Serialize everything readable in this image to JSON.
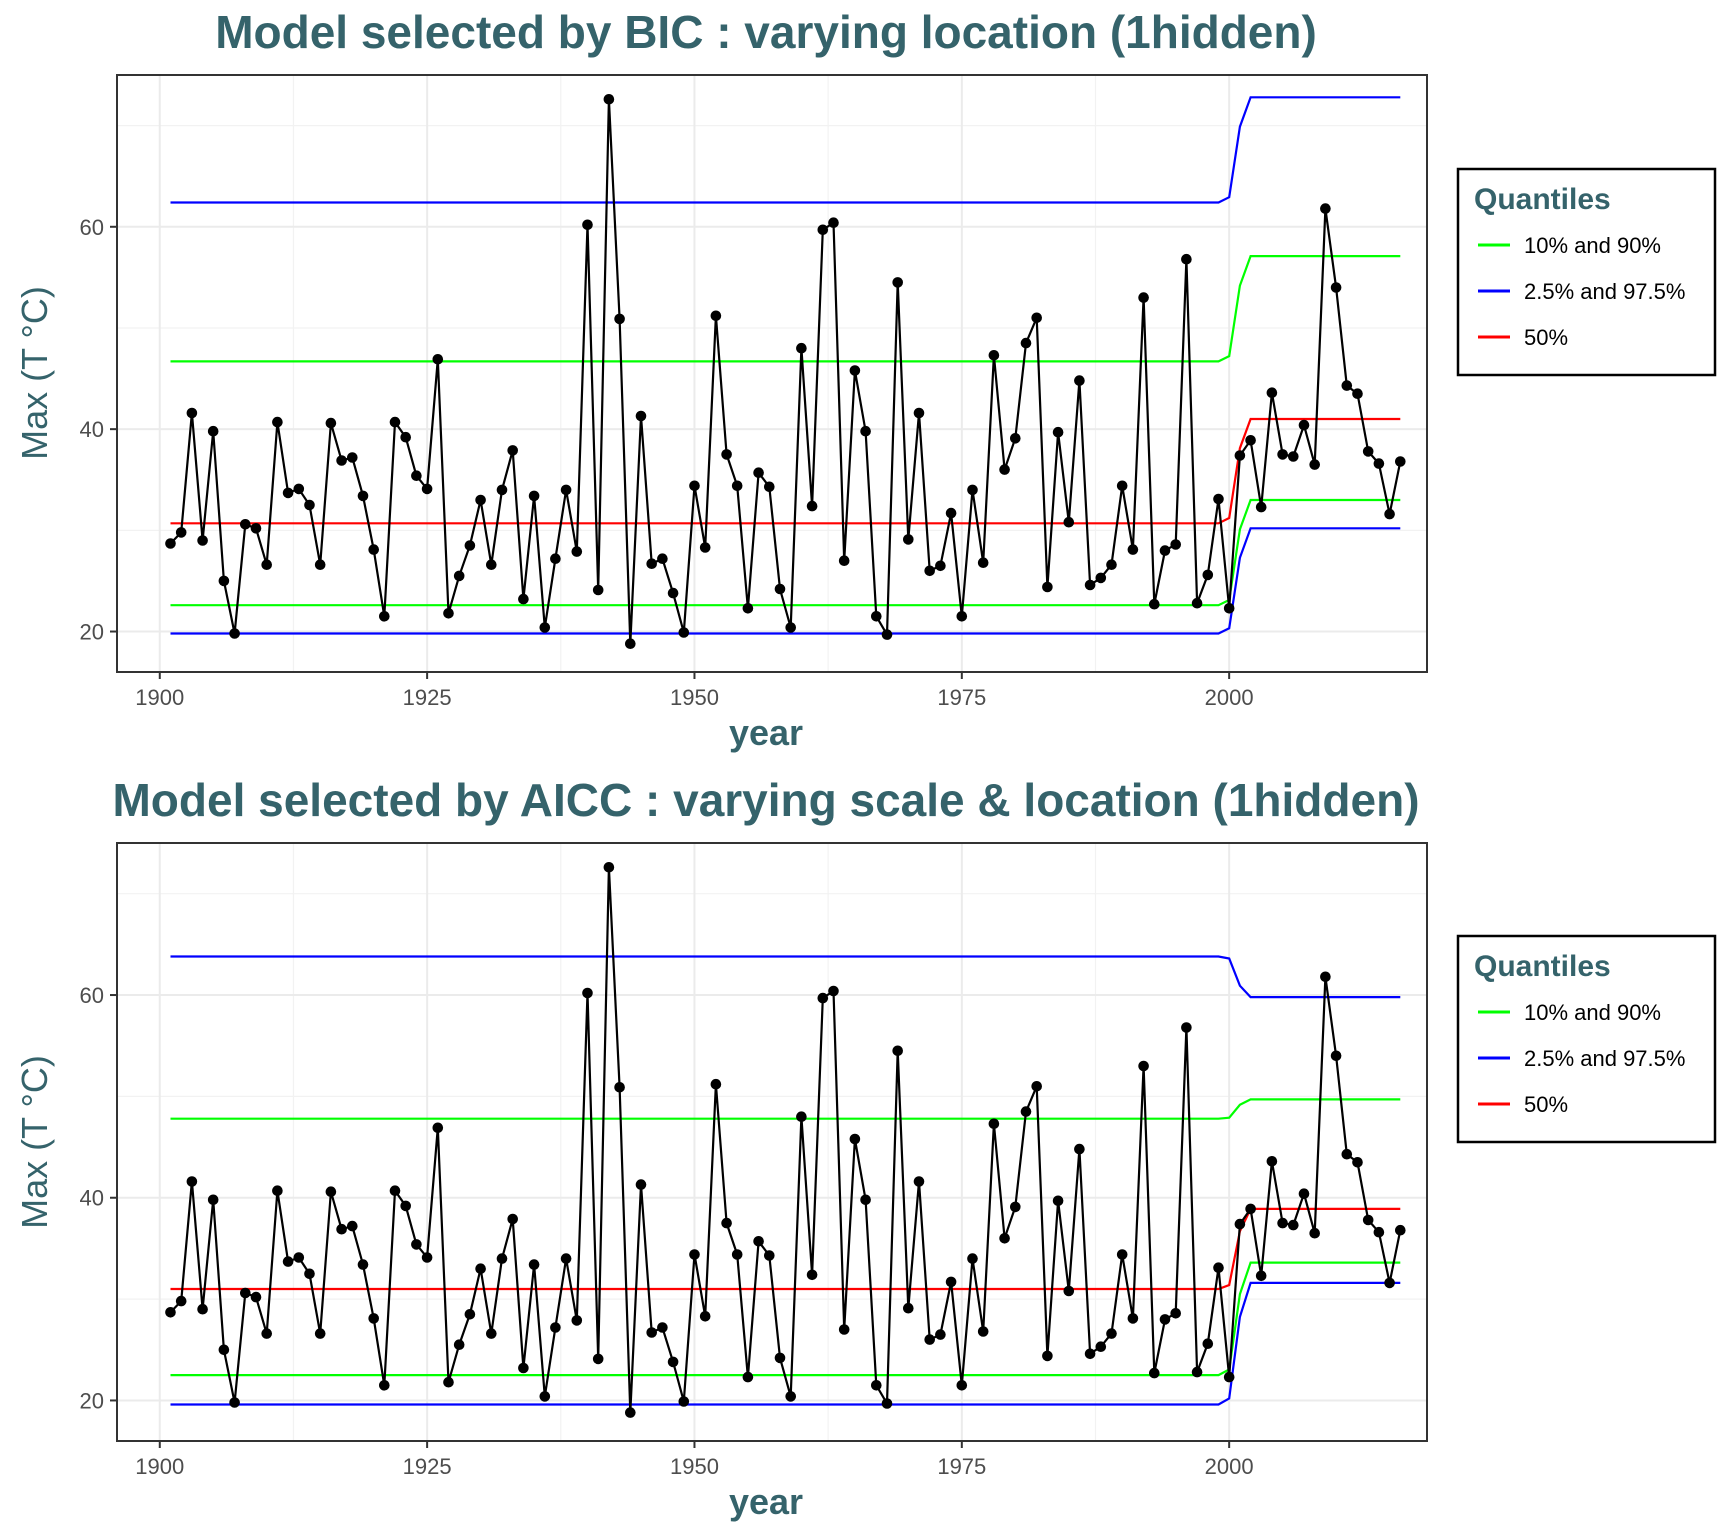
{
  "chart_data": [
    {
      "type": "line",
      "title": "Model selected by BIC : varying location (1hidden)",
      "xlabel": "year",
      "ylabel": "Max (T °C)",
      "xlim": [
        1896,
        2018.5
      ],
      "ylim": [
        16,
        75
      ],
      "xticks": [
        1900,
        1925,
        1950,
        1975,
        2000
      ],
      "yticks": [
        20,
        40,
        60
      ],
      "grid": true,
      "legend": {
        "title": "Quantiles",
        "placement": "right",
        "entries": [
          {
            "label": "10% and 90%",
            "color": "#00ff00"
          },
          {
            "label": "2.5% and 97.5%",
            "color": "#0000ff"
          },
          {
            "label": "50%",
            "color": "#ff0000"
          }
        ]
      },
      "quantiles": {
        "q025": {
          "before": 19.8,
          "after": 30.2,
          "color": "#0000ff"
        },
        "q10": {
          "before": 22.6,
          "after": 33.0,
          "color": "#00ff00"
        },
        "q50": {
          "before": 30.7,
          "after": 41.0,
          "color": "#ff0000"
        },
        "q90": {
          "before": 46.7,
          "after": 57.1,
          "color": "#00ff00"
        },
        "q975": {
          "before": 62.4,
          "after": 72.8,
          "color": "#0000ff"
        }
      },
      "observations": {
        "x": [
          1901,
          1902,
          1903,
          1904,
          1905,
          1906,
          1907,
          1908,
          1909,
          1910,
          1911,
          1912,
          1913,
          1914,
          1915,
          1916,
          1917,
          1918,
          1919,
          1920,
          1921,
          1922,
          1923,
          1924,
          1925,
          1926,
          1927,
          1928,
          1929,
          1930,
          1931,
          1932,
          1933,
          1934,
          1935,
          1936,
          1937,
          1938,
          1939,
          1940,
          1941,
          1942,
          1943,
          1944,
          1945,
          1946,
          1947,
          1948,
          1949,
          1950,
          1951,
          1952,
          1953,
          1954,
          1955,
          1956,
          1957,
          1958,
          1959,
          1960,
          1961,
          1962,
          1963,
          1964,
          1965,
          1966,
          1967,
          1968,
          1969,
          1970,
          1971,
          1972,
          1973,
          1974,
          1975,
          1976,
          1977,
          1978,
          1979,
          1980,
          1981,
          1982,
          1983,
          1984,
          1985,
          1986,
          1987,
          1988,
          1989,
          1990,
          1991,
          1992,
          1993,
          1994,
          1995,
          1996,
          1997,
          1998,
          1999,
          2000,
          2001,
          2002,
          2003,
          2004,
          2005,
          2006,
          2007,
          2008,
          2009,
          2010,
          2011,
          2012,
          2013,
          2014,
          2015,
          2016
        ],
        "y": [
          28.7,
          29.8,
          41.6,
          29.0,
          39.8,
          25.0,
          19.8,
          30.6,
          30.2,
          26.6,
          40.7,
          33.7,
          34.1,
          32.5,
          26.6,
          40.6,
          36.9,
          37.2,
          33.4,
          28.1,
          21.5,
          40.7,
          39.2,
          35.4,
          34.1,
          46.9,
          21.8,
          25.5,
          28.5,
          33.0,
          26.6,
          34.0,
          37.9,
          23.2,
          33.4,
          20.4,
          27.2,
          34.0,
          27.9,
          60.2,
          24.1,
          72.6,
          50.9,
          18.8,
          41.3,
          26.7,
          27.2,
          23.8,
          19.9,
          34.4,
          28.3,
          51.2,
          37.5,
          34.4,
          22.3,
          35.7,
          34.3,
          24.2,
          20.4,
          48.0,
          32.4,
          59.7,
          60.4,
          27.0,
          45.8,
          39.8,
          21.5,
          19.7,
          54.5,
          29.1,
          41.6,
          26.0,
          26.5,
          31.7,
          21.5,
          34.0,
          26.8,
          47.3,
          36.0,
          39.1,
          48.5,
          51.0,
          24.4,
          39.7,
          30.8,
          44.8,
          24.6,
          25.3,
          26.6,
          34.4,
          28.1,
          53.0,
          22.7,
          28.0,
          28.6,
          56.8,
          22.8,
          25.6,
          33.1,
          22.3,
          37.4,
          38.9,
          32.3,
          43.6,
          37.5,
          37.3,
          40.4,
          36.5,
          61.8,
          54.0,
          44.3,
          43.5,
          37.8,
          36.6,
          31.6,
          36.8
        ]
      }
    },
    {
      "type": "line",
      "title": "Model selected by AICC : varying scale & location (1hidden)",
      "xlabel": "year",
      "ylabel": "Max (T °C)",
      "xlim": [
        1896,
        2018.5
      ],
      "ylim": [
        16,
        75
      ],
      "xticks": [
        1900,
        1925,
        1950,
        1975,
        2000
      ],
      "yticks": [
        20,
        40,
        60
      ],
      "grid": true,
      "legend": {
        "title": "Quantiles",
        "placement": "right",
        "entries": [
          {
            "label": "10% and 90%",
            "color": "#00ff00"
          },
          {
            "label": "2.5% and 97.5%",
            "color": "#0000ff"
          },
          {
            "label": "50%",
            "color": "#ff0000"
          }
        ]
      },
      "quantiles": {
        "q025": {
          "before": 19.6,
          "after": 31.6,
          "color": "#0000ff"
        },
        "q10": {
          "before": 22.5,
          "after": 33.6,
          "color": "#00ff00"
        },
        "q50": {
          "before": 31.0,
          "after": 38.9,
          "color": "#ff0000"
        },
        "q90": {
          "before": 47.8,
          "after": 49.7,
          "color": "#00ff00"
        },
        "q975": {
          "before": 63.8,
          "after": 59.8,
          "color": "#0000ff"
        }
      },
      "observations": {
        "x": [
          1901,
          1902,
          1903,
          1904,
          1905,
          1906,
          1907,
          1908,
          1909,
          1910,
          1911,
          1912,
          1913,
          1914,
          1915,
          1916,
          1917,
          1918,
          1919,
          1920,
          1921,
          1922,
          1923,
          1924,
          1925,
          1926,
          1927,
          1928,
          1929,
          1930,
          1931,
          1932,
          1933,
          1934,
          1935,
          1936,
          1937,
          1938,
          1939,
          1940,
          1941,
          1942,
          1943,
          1944,
          1945,
          1946,
          1947,
          1948,
          1949,
          1950,
          1951,
          1952,
          1953,
          1954,
          1955,
          1956,
          1957,
          1958,
          1959,
          1960,
          1961,
          1962,
          1963,
          1964,
          1965,
          1966,
          1967,
          1968,
          1969,
          1970,
          1971,
          1972,
          1973,
          1974,
          1975,
          1976,
          1977,
          1978,
          1979,
          1980,
          1981,
          1982,
          1983,
          1984,
          1985,
          1986,
          1987,
          1988,
          1989,
          1990,
          1991,
          1992,
          1993,
          1994,
          1995,
          1996,
          1997,
          1998,
          1999,
          2000,
          2001,
          2002,
          2003,
          2004,
          2005,
          2006,
          2007,
          2008,
          2009,
          2010,
          2011,
          2012,
          2013,
          2014,
          2015,
          2016
        ],
        "y": [
          28.7,
          29.8,
          41.6,
          29.0,
          39.8,
          25.0,
          19.8,
          30.6,
          30.2,
          26.6,
          40.7,
          33.7,
          34.1,
          32.5,
          26.6,
          40.6,
          36.9,
          37.2,
          33.4,
          28.1,
          21.5,
          40.7,
          39.2,
          35.4,
          34.1,
          46.9,
          21.8,
          25.5,
          28.5,
          33.0,
          26.6,
          34.0,
          37.9,
          23.2,
          33.4,
          20.4,
          27.2,
          34.0,
          27.9,
          60.2,
          24.1,
          72.6,
          50.9,
          18.8,
          41.3,
          26.7,
          27.2,
          23.8,
          19.9,
          34.4,
          28.3,
          51.2,
          37.5,
          34.4,
          22.3,
          35.7,
          34.3,
          24.2,
          20.4,
          48.0,
          32.4,
          59.7,
          60.4,
          27.0,
          45.8,
          39.8,
          21.5,
          19.7,
          54.5,
          29.1,
          41.6,
          26.0,
          26.5,
          31.7,
          21.5,
          34.0,
          26.8,
          47.3,
          36.0,
          39.1,
          48.5,
          51.0,
          24.4,
          39.7,
          30.8,
          44.8,
          24.6,
          25.3,
          26.6,
          34.4,
          28.1,
          53.0,
          22.7,
          28.0,
          28.6,
          56.8,
          22.8,
          25.6,
          33.1,
          22.3,
          37.4,
          38.9,
          32.3,
          43.6,
          37.5,
          37.3,
          40.4,
          36.5,
          61.8,
          54.0,
          44.3,
          43.5,
          37.8,
          36.6,
          31.6,
          36.8
        ]
      }
    }
  ]
}
